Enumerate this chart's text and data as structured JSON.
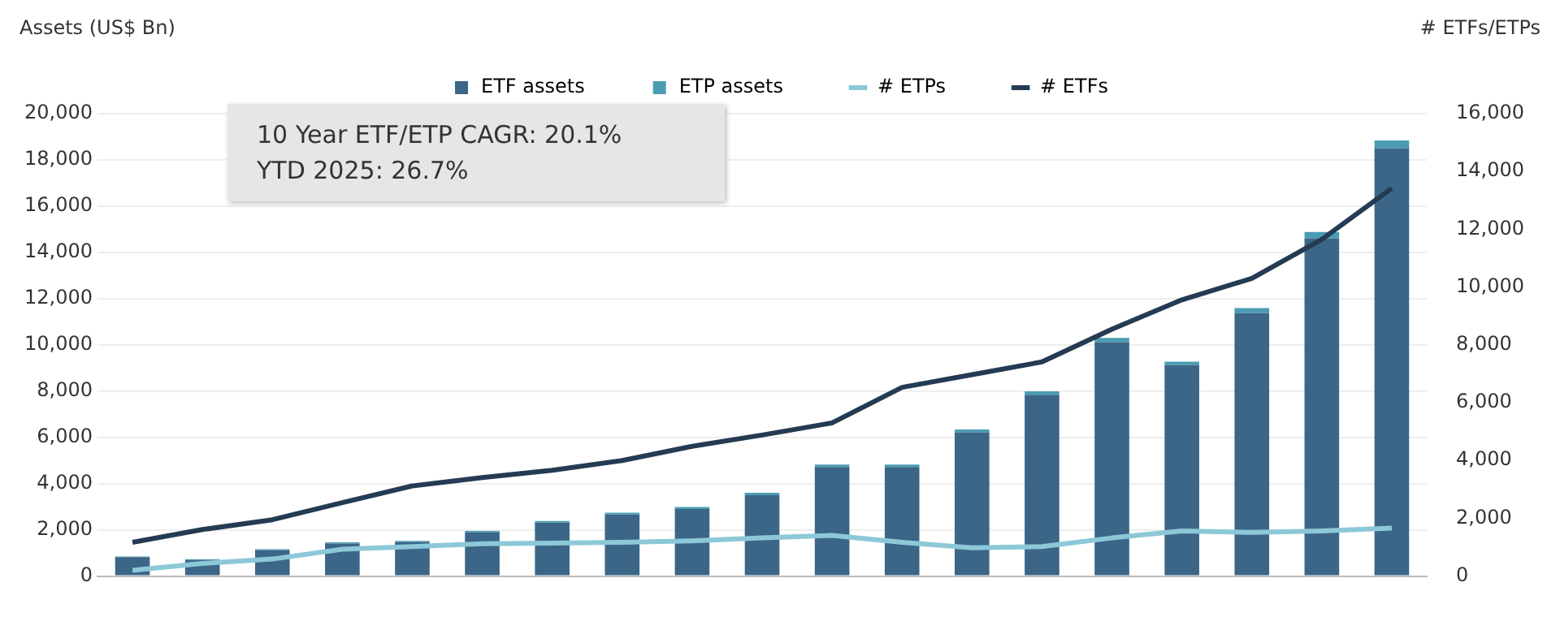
{
  "chart_data": {
    "type": "bar",
    "stacked": true,
    "ylabel": "Assets (US$ Bn)",
    "y2label": "# ETFs/ETPs",
    "categories": [
      null,
      null,
      null,
      null,
      null,
      null,
      null,
      null,
      null,
      null,
      null,
      null,
      null,
      null,
      null,
      null,
      null,
      null,
      null
    ],
    "series": [
      {
        "name": "ETF assets",
        "color": "#3b6688",
        "values": [
          820,
          700,
          1120,
          1410,
          1470,
          1890,
          2310,
          2660,
          2900,
          3500,
          4720,
          4720,
          6220,
          7840,
          10120,
          9120,
          11370,
          14600,
          18510
        ]
      },
      {
        "name": "ETP assets",
        "color": "#4a9cb2",
        "values": [
          30,
          30,
          40,
          50,
          50,
          60,
          70,
          80,
          90,
          100,
          100,
          100,
          120,
          150,
          180,
          150,
          220,
          280,
          330
        ]
      },
      {
        "name": "# ETPs",
        "type": "line",
        "axis": "y2",
        "color": "#8cc8d8",
        "values": [
          200,
          440,
          590,
          930,
          1020,
          1120,
          1140,
          1170,
          1220,
          1320,
          1410,
          1170,
          980,
          1020,
          1320,
          1560,
          1510,
          1560,
          1660
        ]
      },
      {
        "name": "# ETFs",
        "type": "line",
        "axis": "y2",
        "color": "#243b53",
        "values": [
          1170,
          1610,
          1950,
          2540,
          3120,
          3410,
          3660,
          4000,
          4490,
          4880,
          5300,
          6530,
          6970,
          7410,
          8540,
          9560,
          10300,
          11650,
          13420
        ]
      }
    ],
    "ylim": [
      0,
      20000
    ],
    "yticks": [
      0,
      {
        "value": 2000,
        "label": "2,000"
      },
      {
        "value": 4000,
        "label": "4,000"
      },
      {
        "value": 6000,
        "label": "6,000"
      },
      {
        "value": 8000,
        "label": "8,000"
      },
      {
        "value": 10000,
        "label": "10,000"
      },
      {
        "value": 12000,
        "label": "12,000"
      },
      {
        "value": 14000,
        "label": "14,000"
      },
      {
        "value": 16000,
        "label": "16,000"
      },
      {
        "value": 18000,
        "label": "18,000"
      },
      {
        "value": 20000,
        "label": "20,000"
      }
    ],
    "y2lim": [
      0,
      16000
    ],
    "y2ticks": [
      0,
      {
        "value": 2000,
        "label": "2,000"
      },
      {
        "value": 4000,
        "label": "4,000"
      },
      {
        "value": 6000,
        "label": "6,000"
      },
      {
        "value": 8000,
        "label": "8,000"
      },
      {
        "value": 10000,
        "label": "10,000"
      },
      {
        "value": 12000,
        "label": "12,000"
      },
      {
        "value": 14000,
        "label": "14,000"
      },
      {
        "value": 16000,
        "label": "16,000"
      }
    ],
    "grid": "y",
    "legend": "top",
    "marker": "none",
    "annotations": [
      "10 Year ETF/ETP CAGR: 20.1%",
      "YTD 2025: 26.7%"
    ]
  }
}
